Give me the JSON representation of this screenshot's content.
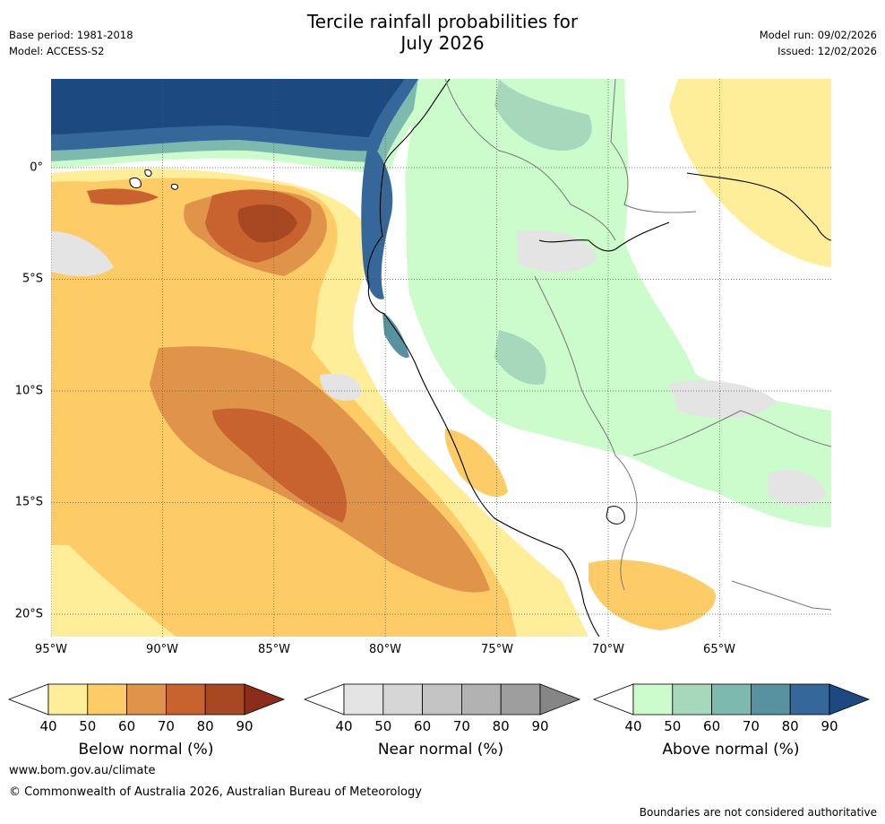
{
  "title_line1": "Tercile rainfall probabilities for",
  "title_line2": "July 2026",
  "base_period": "Base period: 1981-2018",
  "model": "Model: ACCESS-S2",
  "model_run": "Model run: 09/02/2026",
  "issued": "Issued: 12/02/2026",
  "lon_labels": [
    "95°W",
    "90°W",
    "85°W",
    "80°W",
    "75°W",
    "70°W",
    "65°W"
  ],
  "lat_labels": [
    "0°",
    "5°S",
    "10°S",
    "15°S",
    "20°S"
  ],
  "colorbars": [
    {
      "id": "below",
      "title": "Below normal (%)",
      "ticks": [
        "40",
        "50",
        "60",
        "70",
        "80",
        "90"
      ],
      "colors": [
        "#ffffff",
        "#ffee99",
        "#fdcc66",
        "#e0944a",
        "#c8632f",
        "#a84822",
        "#8c2d1c"
      ]
    },
    {
      "id": "near",
      "title": "Near normal (%)",
      "ticks": [
        "40",
        "50",
        "60",
        "70",
        "80",
        "90"
      ],
      "colors": [
        "#ffffff",
        "#e4e4e4",
        "#d6d6d6",
        "#c4c4c4",
        "#b2b2b2",
        "#9e9e9e",
        "#868686"
      ]
    },
    {
      "id": "above",
      "title": "Above normal (%)",
      "ticks": [
        "40",
        "50",
        "60",
        "70",
        "80",
        "90"
      ],
      "colors": [
        "#ffffff",
        "#ccfccc",
        "#a6d8bb",
        "#7eb9ae",
        "#5892a0",
        "#35679a",
        "#1c4a80"
      ]
    }
  ],
  "website": "www.bom.gov.au/climate",
  "copyright": "© Commonwealth of Australia 2026, Australian Bureau of Meteorology",
  "disclaimer": "Boundaries are not considered authoritative"
}
